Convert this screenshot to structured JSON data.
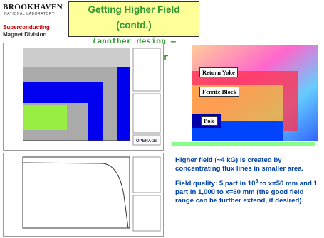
{
  "header": {
    "logo": "BROOKHAVEN",
    "logo_sub": "NATIONAL LABORATORY",
    "division_1": "Superconducting",
    "division_2": "Magnet Division"
  },
  "title": {
    "line_1": "Getting Higher Field (contd.)",
    "line_2": "(another design – simpler/cheaper)"
  },
  "figures": {
    "labels": [
      "Return Yoke",
      "Ferrite Block",
      "Pole"
    ],
    "software": "OPERA-2d"
  },
  "notes": [
    {
      "text": "Higher field (~4 kG)  is created by concentrating flux lines in smaller area."
    },
    {
      "before": "Field quality: 5 part in 10",
      "sup": "5",
      "after": " to x=50 mm and 1 part in 1,000 to x=60 mm (the good field range can be further extend, if desired)."
    }
  ]
}
